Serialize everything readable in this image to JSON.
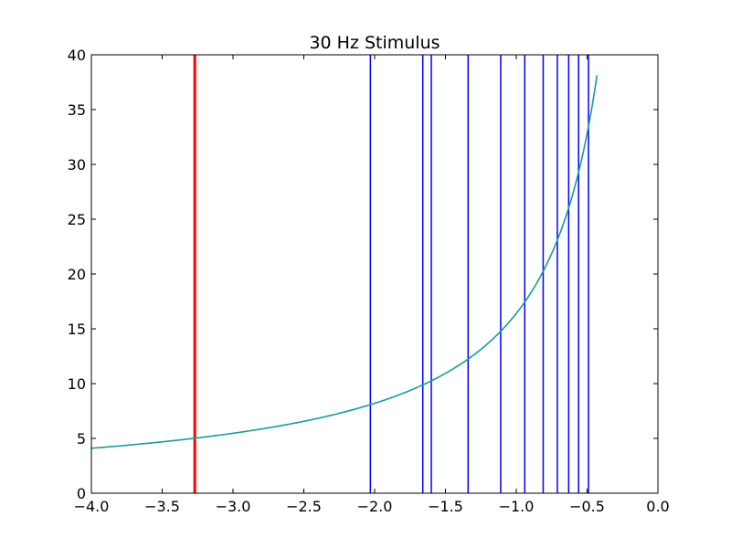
{
  "chart_data": {
    "type": "line",
    "title": "30 Hz Stimulus",
    "xlabel": "",
    "ylabel": "",
    "xlim": [
      -4.0,
      0.0
    ],
    "ylim": [
      0,
      40
    ],
    "xticks": [
      -4.0,
      -3.5,
      -3.0,
      -2.5,
      -2.0,
      -1.5,
      -1.0,
      -0.5,
      0.0
    ],
    "xtick_labels": [
      "−4.0",
      "−3.5",
      "−3.0",
      "−2.5",
      "−2.0",
      "−1.5",
      "−1.0",
      "−0.5",
      "0.0"
    ],
    "yticks": [
      0,
      5,
      10,
      15,
      20,
      25,
      30,
      35,
      40
    ],
    "ytick_labels": [
      "0",
      "5",
      "10",
      "15",
      "20",
      "25",
      "30",
      "35",
      "40"
    ],
    "grid": false,
    "legend": "none",
    "curve": {
      "color": "#1a9a9a",
      "function": "y = 16.4 / (-x)",
      "x_start": -4.0,
      "x_end": -0.43
    },
    "vertical_lines": [
      {
        "x": -3.27,
        "color": "#ff0000",
        "width": 3
      },
      {
        "x": -2.03,
        "color": "#0000ff",
        "width": 1.5
      },
      {
        "x": -1.66,
        "color": "#0000ff",
        "width": 1.5
      },
      {
        "x": -1.6,
        "color": "#0000ff",
        "width": 1.5
      },
      {
        "x": -1.34,
        "color": "#0000ff",
        "width": 1.5
      },
      {
        "x": -1.11,
        "color": "#0000ff",
        "width": 1.5
      },
      {
        "x": -0.94,
        "color": "#0000ff",
        "width": 1.5
      },
      {
        "x": -0.81,
        "color": "#0000ff",
        "width": 1.5
      },
      {
        "x": -0.71,
        "color": "#0000ff",
        "width": 1.5
      },
      {
        "x": -0.63,
        "color": "#0000ff",
        "width": 1.5
      },
      {
        "x": -0.56,
        "color": "#0000ff",
        "width": 1.5
      },
      {
        "x": -0.49,
        "color": "#0000ff",
        "width": 1.5
      }
    ]
  }
}
